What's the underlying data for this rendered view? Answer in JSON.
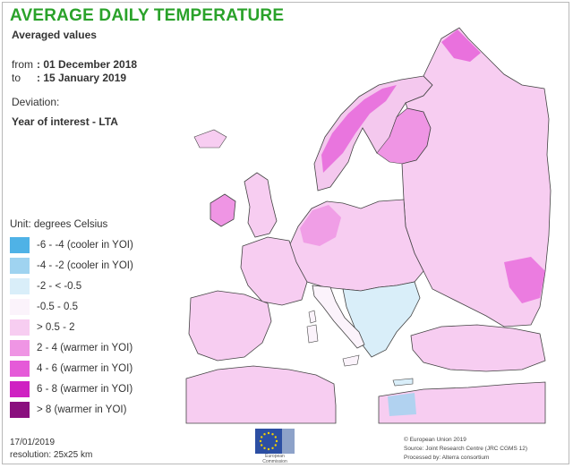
{
  "header": {
    "title": "AVERAGE DAILY TEMPERATURE",
    "subtitle": "Averaged values"
  },
  "period": {
    "from_label": "from",
    "from_value": ": 01 December 2018",
    "to_label": "to",
    "to_value": ": 15 January 2019"
  },
  "deviation": {
    "label": "Deviation:",
    "value": "Year of interest - LTA"
  },
  "legend": {
    "unit": "Unit:  degrees Celsius",
    "items": [
      {
        "label": "-6 - -4 (cooler in YOI)",
        "color": "#4fb2e6"
      },
      {
        "label": "-4 - -2 (cooler in YOI)",
        "color": "#9fd3f0"
      },
      {
        "label": "-2 - < -0.5",
        "color": "#d9eef9"
      },
      {
        "label": "-0.5 - 0.5",
        "color": "#fbf3fb"
      },
      {
        "label": "> 0.5 - 2",
        "color": "#f7cdf1"
      },
      {
        "label": "2 - 4 (warmer in YOI)",
        "color": "#ef95e4"
      },
      {
        "label": "4 - 6 (warmer in YOI)",
        "color": "#e55ad8"
      },
      {
        "label": "6 - 8 (warmer in YOI)",
        "color": "#cf22c2"
      },
      {
        "label": "> 8 (warmer in YOI)",
        "color": "#8a0f7e"
      }
    ]
  },
  "footer": {
    "date": "17/01/2019",
    "resolution": "resolution:  25x25 km",
    "logo_caption": "European Commission",
    "credit_1": "© European Union 2019",
    "credit_2": "Source: Joint Research Centre (JRC CGMS 12)",
    "credit_3": "Processed by: Alterra consortium"
  },
  "icons": {
    "logo": "eu-flag-icon"
  }
}
